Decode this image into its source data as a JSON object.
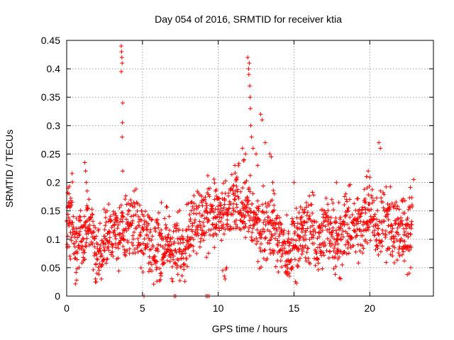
{
  "chart_data": {
    "type": "scatter",
    "title": "Day 054 of 2016, SRMTID for receiver ktia",
    "xlabel": "GPS time / hours",
    "ylabel": "SRMTID / TECUs",
    "xlim": [
      0,
      24.2
    ],
    "ylim": [
      0,
      0.45
    ],
    "x_ticks": [
      0,
      5,
      10,
      15,
      20
    ],
    "x_tick_labels": [
      "0",
      "5",
      "10",
      "15",
      "20"
    ],
    "y_ticks": [
      0,
      0.05,
      0.1,
      0.15,
      0.2,
      0.25,
      0.3,
      0.35,
      0.4,
      0.45
    ],
    "y_tick_labels": [
      "0",
      "0.05",
      "0.1",
      "0.15",
      "0.2",
      "0.25",
      "0.3",
      "0.35",
      "0.4",
      "0.45"
    ],
    "grid": true,
    "marker": "+",
    "color": "#ff0000",
    "series": [
      {
        "name": "SRMTID",
        "trend": [
          [
            0.0,
            0.135
          ],
          [
            0.3,
            0.145
          ],
          [
            0.6,
            0.095
          ],
          [
            0.9,
            0.11
          ],
          [
            1.2,
            0.1
          ],
          [
            1.5,
            0.14
          ],
          [
            1.8,
            0.09
          ],
          [
            2.2,
            0.075
          ],
          [
            2.6,
            0.1
          ],
          [
            3.0,
            0.12
          ],
          [
            3.4,
            0.1
          ],
          [
            3.7,
            0.11
          ],
          [
            4.2,
            0.13
          ],
          [
            4.7,
            0.115
          ],
          [
            5.2,
            0.12
          ],
          [
            5.6,
            0.08
          ],
          [
            6.0,
            0.09
          ],
          [
            6.5,
            0.1
          ],
          [
            7.0,
            0.08
          ],
          [
            7.5,
            0.08
          ],
          [
            8.0,
            0.11
          ],
          [
            8.5,
            0.14
          ],
          [
            9.0,
            0.13
          ],
          [
            9.5,
            0.15
          ],
          [
            10.0,
            0.14
          ],
          [
            10.5,
            0.13
          ],
          [
            11.0,
            0.16
          ],
          [
            11.5,
            0.17
          ],
          [
            12.0,
            0.15
          ],
          [
            12.5,
            0.12
          ],
          [
            13.0,
            0.12
          ],
          [
            13.5,
            0.13
          ],
          [
            14.0,
            0.1
          ],
          [
            14.5,
            0.07
          ],
          [
            15.0,
            0.095
          ],
          [
            15.5,
            0.11
          ],
          [
            16.0,
            0.12
          ],
          [
            16.5,
            0.1
          ],
          [
            17.0,
            0.11
          ],
          [
            17.5,
            0.12
          ],
          [
            18.0,
            0.1
          ],
          [
            18.5,
            0.13
          ],
          [
            19.0,
            0.11
          ],
          [
            19.5,
            0.14
          ],
          [
            20.0,
            0.15
          ],
          [
            20.5,
            0.11
          ],
          [
            21.0,
            0.14
          ],
          [
            21.5,
            0.12
          ],
          [
            22.0,
            0.12
          ],
          [
            22.5,
            0.11
          ],
          [
            22.8,
            0.13
          ]
        ],
        "points": [
          [
            0.1,
            0.19
          ],
          [
            0.15,
            0.18
          ],
          [
            0.2,
            0.07
          ],
          [
            0.25,
            0.065
          ],
          [
            1.2,
            0.235
          ],
          [
            1.25,
            0.22
          ],
          [
            1.3,
            0.2
          ],
          [
            1.35,
            0.185
          ],
          [
            1.9,
            0.03
          ],
          [
            1.95,
            0.025
          ],
          [
            2.0,
            0.04
          ],
          [
            3.6,
            0.44
          ],
          [
            3.62,
            0.43
          ],
          [
            3.64,
            0.42
          ],
          [
            3.66,
            0.41
          ],
          [
            3.6,
            0.395
          ],
          [
            3.7,
            0.34
          ],
          [
            3.68,
            0.305
          ],
          [
            3.66,
            0.28
          ],
          [
            3.7,
            0.22
          ],
          [
            10.3,
            0.045
          ],
          [
            10.4,
            0.035
          ],
          [
            10.45,
            0.03
          ],
          [
            10.55,
            0.05
          ],
          [
            11.1,
            0.23
          ],
          [
            11.2,
            0.205
          ],
          [
            11.6,
            0.26
          ],
          [
            11.7,
            0.24
          ],
          [
            11.8,
            0.25
          ],
          [
            11.95,
            0.42
          ],
          [
            12.0,
            0.4
          ],
          [
            12.02,
            0.39
          ],
          [
            12.05,
            0.41
          ],
          [
            12.08,
            0.37
          ],
          [
            12.1,
            0.35
          ],
          [
            12.12,
            0.33
          ],
          [
            12.15,
            0.3
          ],
          [
            12.2,
            0.28
          ],
          [
            12.3,
            0.26
          ],
          [
            12.5,
            0.25
          ],
          [
            12.6,
            0.23
          ],
          [
            12.8,
            0.32
          ],
          [
            12.9,
            0.31
          ],
          [
            13.1,
            0.27
          ],
          [
            13.4,
            0.25
          ],
          [
            13.5,
            0.245
          ],
          [
            13.6,
            0.2
          ],
          [
            13.7,
            0.18
          ],
          [
            14.6,
            0.04
          ],
          [
            14.7,
            0.035
          ],
          [
            15.0,
            0.2
          ],
          [
            17.8,
            0.2
          ],
          [
            19.8,
            0.21
          ],
          [
            19.9,
            0.22
          ],
          [
            20.6,
            0.27
          ],
          [
            20.7,
            0.26
          ],
          [
            22.6,
            0.04
          ],
          [
            22.7,
            0.05
          ],
          [
            22.9,
            0.205
          ],
          [
            5.1,
            0.0
          ],
          [
            7.1,
            0.0
          ],
          [
            7.2,
            0.0
          ],
          [
            9.2,
            0.0
          ],
          [
            9.3,
            0.0
          ],
          [
            9.4,
            0.0
          ]
        ]
      }
    ]
  }
}
